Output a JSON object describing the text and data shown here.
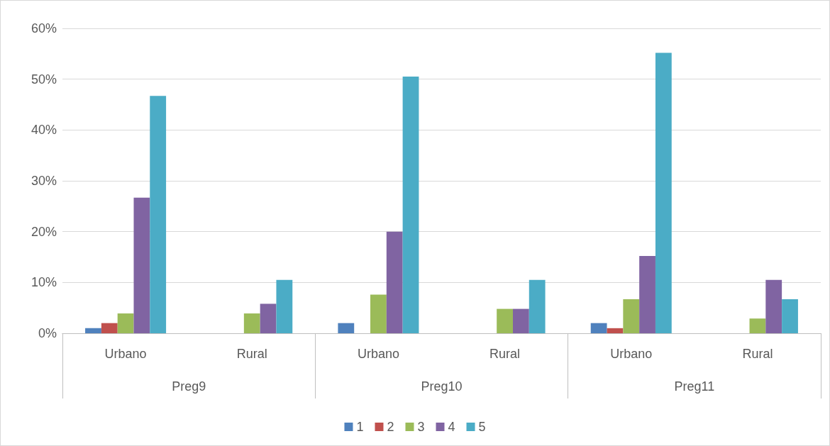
{
  "chart_data": {
    "type": "bar",
    "categories": [
      "Urbano",
      "Rural",
      "Urbano",
      "Rural",
      "Urbano",
      "Rural"
    ],
    "annotations": [
      "Preg9",
      "Preg10",
      "Preg11"
    ],
    "series": [
      {
        "name": "1",
        "color": "#4f81bd",
        "values": [
          1,
          0,
          2,
          0,
          2,
          0
        ]
      },
      {
        "name": "2",
        "color": "#c0504d",
        "values": [
          2,
          0,
          0,
          0,
          1,
          0
        ]
      },
      {
        "name": "3",
        "color": "#9bbb59",
        "values": [
          3.9,
          3.9,
          7.6,
          4.8,
          6.7,
          2.9
        ]
      },
      {
        "name": "4",
        "color": "#8064a2",
        "values": [
          26.7,
          5.8,
          20,
          4.8,
          15.2,
          10.5
        ]
      },
      {
        "name": "5",
        "color": "#4bacc6",
        "values": [
          46.7,
          10.5,
          50.5,
          10.5,
          55.2,
          6.7
        ]
      }
    ],
    "ylim": [
      0,
      60
    ],
    "yticks": [
      {
        "value": 0,
        "label": "0%"
      },
      {
        "value": 10,
        "label": "10%"
      },
      {
        "value": 20,
        "label": "20%"
      },
      {
        "value": 30,
        "label": "30%"
      },
      {
        "value": 40,
        "label": "40%"
      },
      {
        "value": 50,
        "label": "50%"
      },
      {
        "value": 60,
        "label": "60%"
      }
    ],
    "grid": "y",
    "legend": "bottom"
  }
}
